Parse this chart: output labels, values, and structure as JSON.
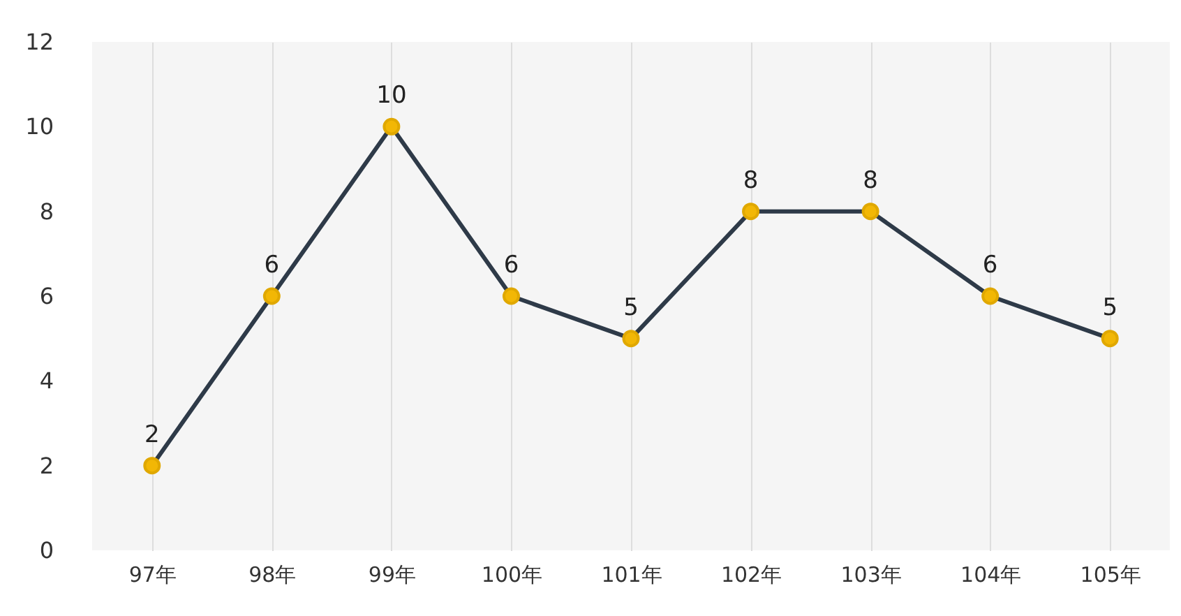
{
  "chart_data": {
    "type": "line",
    "categories": [
      "97年",
      "98年",
      "99年",
      "100年",
      "101年",
      "102年",
      "103年",
      "104年",
      "105年"
    ],
    "series": [
      {
        "color": "#2e3a48",
        "values": [
          2,
          6,
          10,
          6,
          5,
          8,
          8,
          6,
          5
        ]
      }
    ],
    "ylim": [
      0,
      12
    ],
    "yticks": [
      0,
      2,
      4,
      6,
      8,
      10,
      12
    ],
    "grid": "x",
    "marker": "circle",
    "data_labels": true,
    "legend": false
  }
}
